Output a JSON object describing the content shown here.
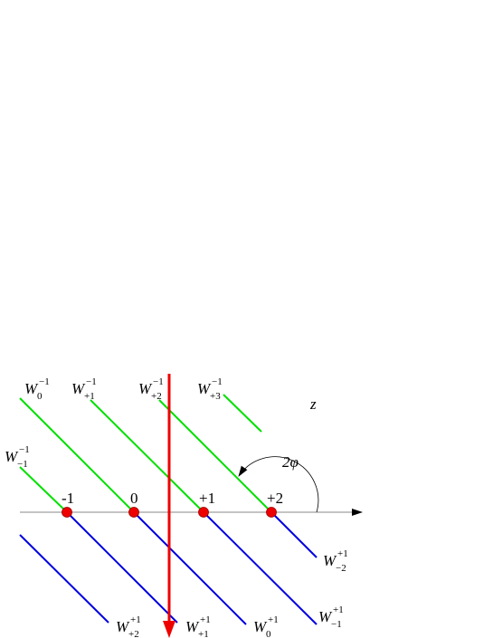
{
  "axis_label": "z",
  "angle_label": "2φ",
  "orders": [
    "-1",
    "0",
    "+1",
    "+2"
  ],
  "upper_waves": [
    {
      "base": "W",
      "sup": "−1",
      "sub": "−1"
    },
    {
      "base": "W",
      "sup": "−1",
      "sub": "0"
    },
    {
      "base": "W",
      "sup": "−1",
      "sub": "+1"
    },
    {
      "base": "W",
      "sup": "−1",
      "sub": "+2"
    },
    {
      "base": "W",
      "sup": "−1",
      "sub": "+3"
    }
  ],
  "lower_waves": [
    {
      "base": "W",
      "sup": "+1",
      "sub": "+2"
    },
    {
      "base": "W",
      "sup": "+1",
      "sub": "+1"
    },
    {
      "base": "W",
      "sup": "+1",
      "sub": "0"
    },
    {
      "base": "W",
      "sup": "+1",
      "sub": "−1"
    },
    {
      "base": "W",
      "sup": "+1",
      "sub": "−2"
    }
  ]
}
